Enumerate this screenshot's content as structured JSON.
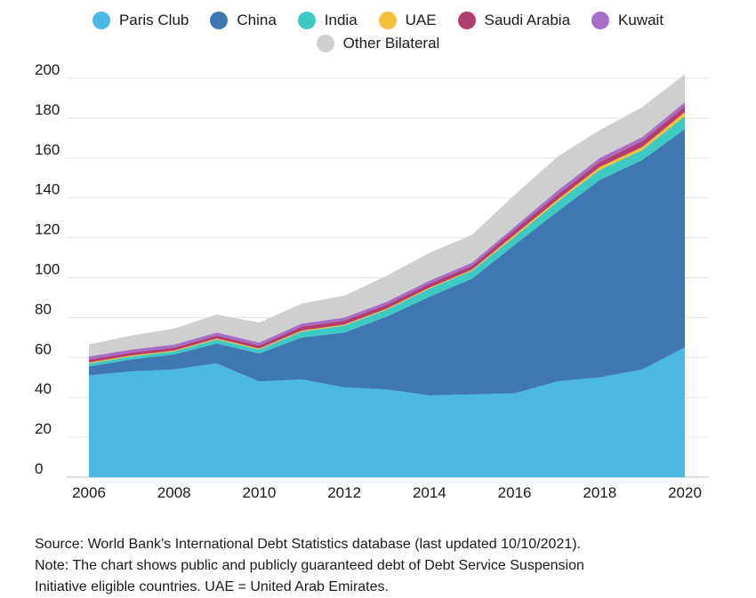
{
  "chart_data": {
    "type": "area",
    "stacked": true,
    "x": [
      2006,
      2007,
      2008,
      2009,
      2010,
      2011,
      2012,
      2013,
      2014,
      2015,
      2016,
      2017,
      2018,
      2019,
      2020
    ],
    "xticks": [
      2006,
      2008,
      2010,
      2012,
      2014,
      2016,
      2018,
      2020
    ],
    "yticks": [
      0,
      20,
      40,
      60,
      80,
      100,
      120,
      140,
      160,
      180,
      200
    ],
    "ylim": [
      0,
      200
    ],
    "xlim": [
      2006,
      2020
    ],
    "grid": "horizontal",
    "legend_position": "top-center",
    "series": [
      {
        "name": "Paris Club",
        "color": "#4cb8e6",
        "values": [
          51,
          53,
          54,
          57,
          48,
          49,
          45,
          44,
          41,
          41.5,
          42,
          48,
          50,
          54,
          65
        ]
      },
      {
        "name": "China",
        "color": "#3f77b3",
        "values": [
          4.5,
          6,
          7.5,
          10,
          14,
          21,
          27.5,
          36.5,
          49.5,
          58,
          74.5,
          85,
          99,
          105,
          109.5
        ]
      },
      {
        "name": "India",
        "color": "#3ecac4",
        "values": [
          1.5,
          1.5,
          1.5,
          2,
          2,
          3,
          3.5,
          3.5,
          4,
          4,
          4,
          5,
          5,
          5,
          6.5
        ]
      },
      {
        "name": "UAE",
        "color": "#f3c13a",
        "values": [
          0.5,
          0.5,
          0.5,
          0.5,
          0.5,
          0.5,
          0.5,
          0.5,
          0.5,
          0.5,
          1,
          1,
          1.5,
          1.5,
          2
        ]
      },
      {
        "name": "Saudi Arabia",
        "color": "#b23e6f",
        "values": [
          1.5,
          1.5,
          1.5,
          1.5,
          1.5,
          2,
          2,
          2,
          2,
          2,
          2.5,
          2.5,
          2.5,
          3,
          3
        ]
      },
      {
        "name": "Kuwait",
        "color": "#a86cc9",
        "values": [
          1.5,
          1.5,
          1.5,
          1.5,
          1.5,
          1.5,
          1.5,
          1.5,
          1.5,
          1.5,
          1.5,
          2,
          2,
          2,
          2
        ]
      },
      {
        "name": "Other Bilateral",
        "color": "#cfcfcf",
        "values": [
          6,
          7,
          8,
          9,
          10,
          10,
          11,
          13,
          14,
          14,
          16,
          17,
          14,
          15,
          14
        ]
      }
    ]
  },
  "footer": {
    "source": "Source: World Bank’s International Debt Statistics database (last updated 10/10/2021).",
    "note_line1": "Note: The chart shows public and publicly guaranteed debt of Debt Service Suspension",
    "note_line2": "Initiative eligible countries. UAE = United Arab Emirates."
  }
}
